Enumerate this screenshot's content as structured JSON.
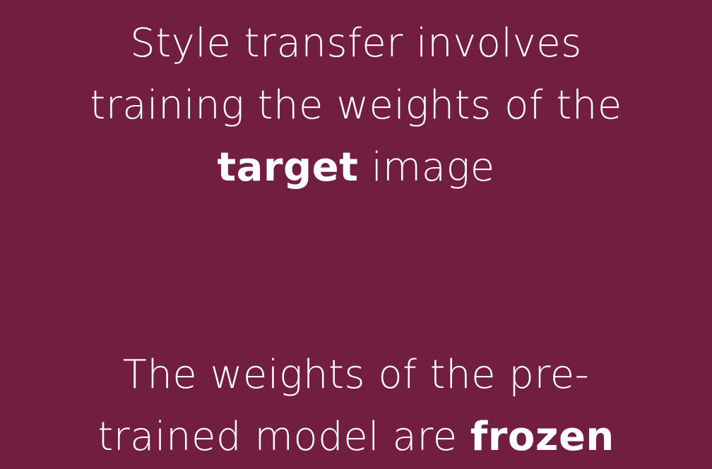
{
  "colors": {
    "background": "#721e40",
    "text": "#ffffff"
  },
  "slide": {
    "block1": {
      "line1": "Style transfer involves",
      "line2": "training the weights of the",
      "line3_bold": "target",
      "line3_rest": " image"
    },
    "block2": {
      "line1": "The weights of the pre-",
      "line2_start": "trained model are ",
      "line2_bold": "frozen"
    }
  }
}
